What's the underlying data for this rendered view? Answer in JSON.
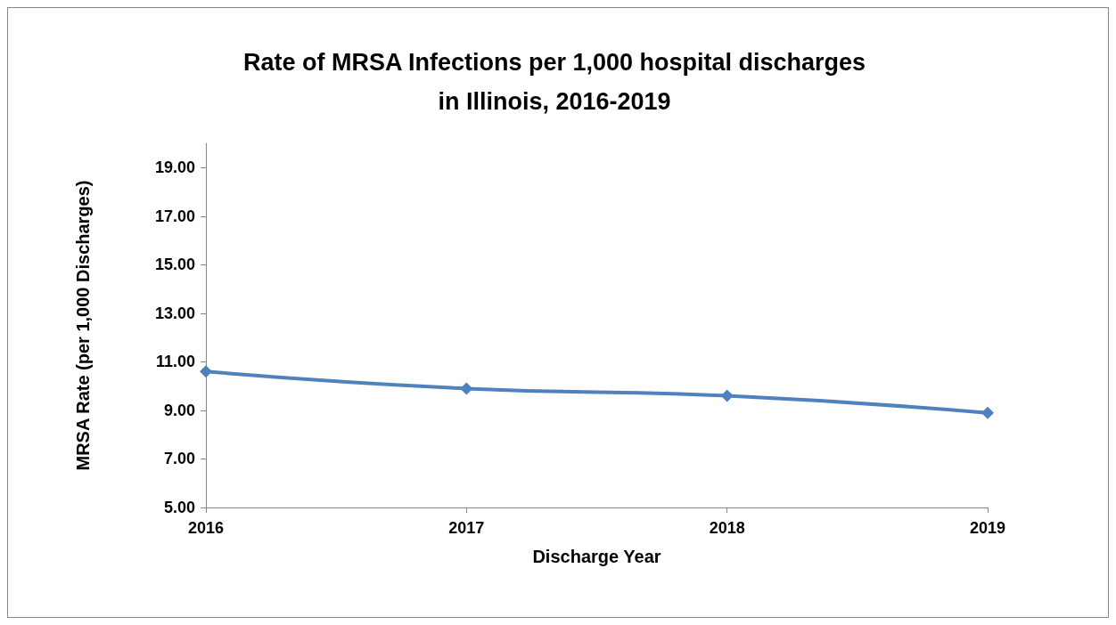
{
  "chart_data": {
    "type": "line",
    "title": "Rate of MRSA Infections per 1,000 hospital discharges\nin Illinois, 2016-2019",
    "xlabel": "Discharge Year",
    "ylabel": "MRSA Rate (per 1,000 Discharges)",
    "categories": [
      "2016",
      "2017",
      "2018",
      "2019"
    ],
    "series": [
      {
        "color": "#4f81bd",
        "values": [
          10.6,
          9.9,
          9.6,
          8.9
        ]
      }
    ],
    "ylim": [
      5,
      20
    ],
    "yticks": [
      {
        "value": 5,
        "label": "5.00"
      },
      {
        "value": 7,
        "label": "7.00"
      },
      {
        "value": 9,
        "label": "9.00"
      },
      {
        "value": 11,
        "label": "11.00"
      },
      {
        "value": 13,
        "label": "13.00"
      },
      {
        "value": 15,
        "label": "15.00"
      },
      {
        "value": 17,
        "label": "17.00"
      },
      {
        "value": 19,
        "label": "19.00"
      }
    ],
    "grid": false,
    "marker": "diamond",
    "line_style": "solid"
  }
}
